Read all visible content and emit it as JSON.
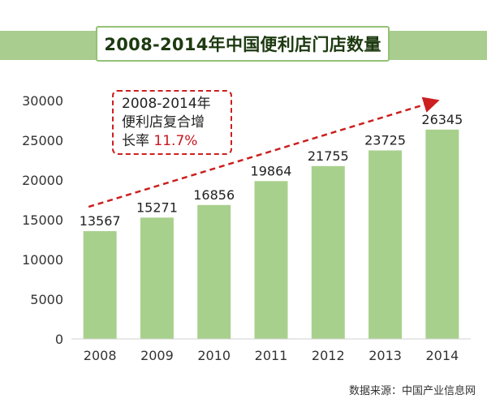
{
  "title": "2008-2014年中国便利店门店数量",
  "annotation": {
    "line1": "2008-2014年",
    "line2": "便利店复合增",
    "line3_prefix": "长率 ",
    "rate": "11.7%"
  },
  "source": "数据来源：中国产业信息网",
  "colors": {
    "bar": "#a8d08d",
    "band": "#a9cd8f",
    "title_border": "#93c274",
    "trend": "#cc1f1f",
    "axis_text": "#333333"
  },
  "chart_data": {
    "type": "bar",
    "title": "2008-2014年中国便利店门店数量",
    "xlabel": "",
    "ylabel": "",
    "categories": [
      "2008",
      "2009",
      "2010",
      "2011",
      "2012",
      "2013",
      "2014"
    ],
    "values": [
      13567,
      15271,
      16856,
      19864,
      21755,
      23725,
      26345
    ],
    "data_labels": [
      "13567",
      "15271",
      "16856",
      "19864",
      "21755",
      "23725",
      "26345"
    ],
    "ylim": [
      0,
      30000
    ],
    "yticks": [
      0,
      5000,
      10000,
      15000,
      20000,
      25000,
      30000
    ],
    "grid": false,
    "legend": "none",
    "trend_arrow": true
  }
}
